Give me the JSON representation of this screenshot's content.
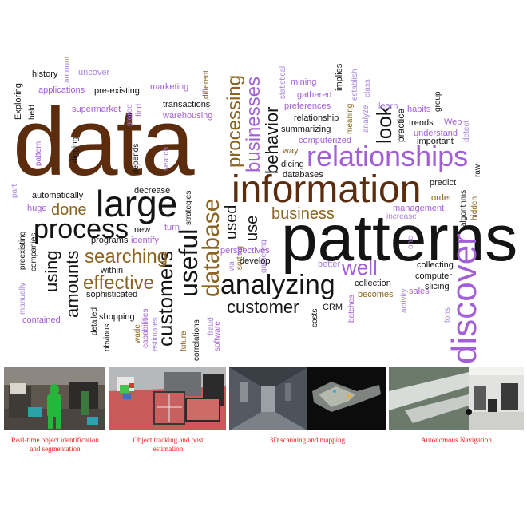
{
  "word_cloud": {
    "colors": {
      "brown": "#5b2c0e",
      "black": "#141414",
      "gold": "#8a6420",
      "purple": "#a25fd8",
      "lavender": "#a684dc"
    },
    "words": {
      "data": "data",
      "patterns": "patterns",
      "information": "information",
      "large": "large",
      "relationships": "relationships",
      "discover": "discover",
      "process": "process",
      "analyzing": "analyzing",
      "database": "database",
      "useful": "useful",
      "customers": "customers",
      "customer": "customer",
      "effective": "effective",
      "searching": "searching",
      "done": "done",
      "business": "business",
      "businesses": "businesses",
      "behavior": "behavior",
      "processing": "processing",
      "look": "look",
      "well": "well",
      "amounts": "amounts",
      "using": "using",
      "used": "used",
      "use": "use",
      "history": "history",
      "amount": "amount",
      "uncover": "uncover",
      "applications": "applications",
      "pre_existing": "pre-existing",
      "marketing": "marketing",
      "different": "different",
      "exploring": "Exploring",
      "supermarket": "supermarket",
      "find": "find",
      "stored": "stored",
      "transactions": "transactions",
      "warehousing": "warehousing",
      "held": "held",
      "pattern": "pattern",
      "digging": "digging",
      "depends": "depends",
      "search": "search",
      "statistical": "statistical",
      "mining": "mining",
      "gathered": "gathered",
      "preferences": "preferences",
      "implies": "implies",
      "meaning": "meaning",
      "establish": "establish",
      "class": "class",
      "relationship": "relationship",
      "analyze": "analyze",
      "learn": "learn",
      "habits": "habits",
      "group": "group",
      "practice": "practice",
      "web": "Web",
      "trends": "trends",
      "summarizing": "summarizing",
      "understand": "understand",
      "detect": "detect",
      "important": "important",
      "computerized": "computerized",
      "way": "way",
      "dicing": "dicing",
      "predict": "predict",
      "raw": "raw",
      "databases": "databases",
      "algorithms": "algorithms",
      "order": "order",
      "hidden": "hidden",
      "management": "management",
      "increase": "increase",
      "automatically": "automatically",
      "part": "part",
      "huge": "huge",
      "decrease": "decrease",
      "strategies": "strategies",
      "companies": "companies",
      "new": "new",
      "programs": "programs",
      "identify": "identify",
      "turn": "turn",
      "sorting": "sorting",
      "gathering": "gathering",
      "perspectives": "perspectives",
      "via": "via",
      "develop": "develop",
      "preexisting": "preexisting",
      "within": "within",
      "sophisticated": "sophisticated",
      "manually": "manually",
      "contained": "contained",
      "detailed": "detailed",
      "shopping": "shopping",
      "obvious": "obvious",
      "wade": "wade",
      "capabilities": "capabilities",
      "estimates": "estimates",
      "future": "future",
      "fraud": "fraud",
      "correlations": "correlations",
      "software": "software",
      "costs": "costs",
      "crm": "CRM",
      "better": "better",
      "collection": "collection",
      "becomes": "becomes",
      "batches": "batches",
      "activity": "activity",
      "sales": "sales",
      "tons": "tons",
      "collecting": "collecting",
      "computer": "computer",
      "slicing": "slicing",
      "one": "one"
    }
  },
  "panels": [
    {
      "caption_line1": "Real-time object identification",
      "caption_line2": "and segmentation"
    },
    {
      "caption_line1": "Object tracking and post",
      "caption_line2": "estimation"
    },
    {
      "caption_line1": "3D scanning and mapping",
      "caption_line2": ""
    },
    {
      "caption_line1": "Autonomous Navigation",
      "caption_line2": ""
    }
  ],
  "caption_color": "#e8211c"
}
